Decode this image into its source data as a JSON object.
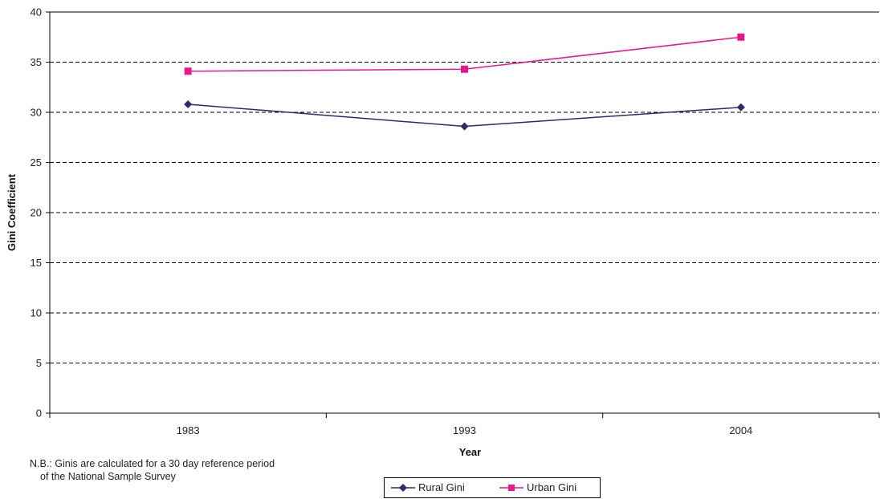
{
  "chart_data": {
    "type": "line",
    "xlabel": "Year",
    "ylabel": "Gini Coefficient",
    "categories": [
      "1983",
      "1993",
      "2004"
    ],
    "ylim": [
      0,
      40
    ],
    "yticks": [
      "0",
      "5",
      "10",
      "15",
      "20",
      "25",
      "30",
      "35",
      "40"
    ],
    "grid": true,
    "legend_position": "bottom",
    "series": [
      {
        "name": "Rural Gini",
        "values": [
          30.8,
          28.6,
          30.5
        ],
        "color": "#2b2a6b",
        "marker": "diamond"
      },
      {
        "name": "Urban Gini",
        "values": [
          34.1,
          34.3,
          37.5
        ],
        "color": "#e5198a",
        "marker": "square"
      }
    ],
    "note": [
      "N.B.: Ginis are calculated for a 30 day reference period",
      "of the National Sample Survey"
    ]
  }
}
